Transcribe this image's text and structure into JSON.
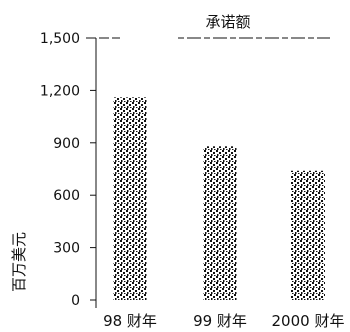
{
  "chart_data": {
    "type": "bar",
    "title": "承诺额",
    "ylabel": "百万美元",
    "xlabel": "",
    "categories": [
      "98 财年",
      "99 财年",
      "2000 财年"
    ],
    "values": [
      1160,
      880,
      740
    ],
    "ylim": [
      0,
      1500
    ],
    "yticks": [
      0,
      300,
      600,
      900,
      1200,
      1500
    ],
    "ytick_labels": [
      "0",
      "300",
      "600",
      "900",
      "1,200",
      "1,500"
    ],
    "grid": false,
    "legend": "none",
    "bar_fill": "stippled black dots"
  },
  "colors": {
    "background": "#ffffff",
    "ink": "#111111"
  }
}
